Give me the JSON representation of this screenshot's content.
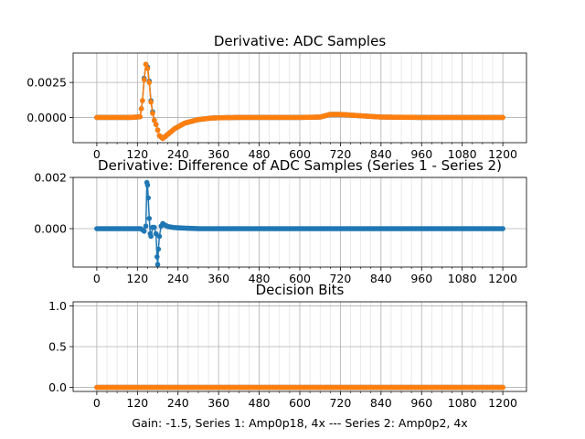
{
  "figure": {
    "xlabel": "Gain: -1.5, Series 1: Amp0p18, 4x --- Series 2: Amp0p2, 4x"
  },
  "colors": {
    "series1": "#1f77b4",
    "series2": "#ff7f0e",
    "grid": "#b0b0b0"
  },
  "chart_data": [
    {
      "type": "line",
      "title": "Derivative: ADC Samples",
      "xlim": [
        -70,
        1270
      ],
      "ylim": [
        -0.0018,
        0.0046
      ],
      "xticks": [
        0,
        120,
        240,
        360,
        480,
        600,
        720,
        840,
        960,
        1080,
        1200
      ],
      "xtick_labels": [
        "0",
        "120",
        "240",
        "360",
        "480",
        "600",
        "720",
        "840",
        "960",
        "1080",
        "1200"
      ],
      "yticks": [
        0.0,
        0.0025
      ],
      "ytick_labels": [
        "0.0000",
        "0.0025"
      ],
      "grid": true,
      "marker": "circle",
      "series": [
        {
          "color_key": "series1",
          "x": [
            0,
            100,
            128,
            135,
            140,
            145,
            150,
            155,
            160,
            165,
            170,
            175,
            180,
            185,
            195,
            210,
            230,
            260,
            300,
            340,
            380,
            420,
            600,
            660,
            690,
            720,
            780,
            840,
            960,
            1080,
            1200
          ],
          "y": [
            0,
            0,
            5e-05,
            0.0012,
            0.0028,
            0.0038,
            0.0036,
            0.0026,
            0.0012,
            0.0004,
            -0.0002,
            -0.0005,
            -0.0009,
            -0.0013,
            -0.0015,
            -0.0012,
            -0.0008,
            -0.0004,
            -0.00015,
            -4e-05,
            -1e-05,
            0,
            0,
            3e-05,
            0.00022,
            0.00022,
            0.00012,
            3e-05,
            0,
            0,
            0
          ]
        },
        {
          "color_key": "series2",
          "x": [
            0,
            100,
            128,
            135,
            140,
            145,
            150,
            155,
            160,
            165,
            170,
            175,
            180,
            185,
            195,
            210,
            230,
            260,
            300,
            340,
            380,
            420,
            600,
            660,
            690,
            720,
            780,
            840,
            960,
            1080,
            1200
          ],
          "y": [
            0,
            0,
            5e-05,
            0.0012,
            0.0027,
            0.0038,
            0.0035,
            0.0025,
            0.0011,
            0.0003,
            -0.0002,
            -0.0005,
            -0.0009,
            -0.0013,
            -0.0015,
            -0.0012,
            -0.0008,
            -0.0004,
            -0.00015,
            -4e-05,
            -1e-05,
            0,
            0,
            3e-05,
            0.00022,
            0.00022,
            0.00012,
            3e-05,
            0,
            0,
            0
          ]
        }
      ]
    },
    {
      "type": "line",
      "title": "Derivative: Difference of ADC Samples (Series 1 - Series 2)",
      "xlim": [
        -70,
        1270
      ],
      "ylim": [
        -0.0015,
        0.002
      ],
      "xticks": [
        0,
        120,
        240,
        360,
        480,
        600,
        720,
        840,
        960,
        1080,
        1200
      ],
      "xtick_labels": [
        "0",
        "120",
        "240",
        "360",
        "480",
        "600",
        "720",
        "840",
        "960",
        "1080",
        "1200"
      ],
      "yticks": [
        0.0,
        0.002
      ],
      "ytick_labels": [
        "0.000",
        "0.002"
      ],
      "grid": true,
      "marker": "circle",
      "series": [
        {
          "color_key": "series1",
          "x": [
            0,
            100,
            130,
            135,
            140,
            145,
            148,
            150,
            152,
            155,
            158,
            160,
            165,
            170,
            175,
            178,
            180,
            182,
            185,
            190,
            195,
            200,
            210,
            230,
            260,
            300,
            400,
            600,
            800,
            1000,
            1200
          ],
          "y": [
            0,
            0,
            0,
            -5e-05,
            -0.0001,
            0.0001,
            0.0018,
            0.0017,
            0.0012,
            0.0004,
            -0.0002,
            -0.0003,
            5e-05,
            5e-05,
            -0.0002,
            -0.0011,
            -0.0014,
            -0.0008,
            -0.0003,
            0.0001,
            0.0002,
            0.00015,
            8e-05,
            4e-05,
            2e-05,
            0,
            0,
            0,
            0,
            0,
            0
          ]
        }
      ]
    },
    {
      "type": "line",
      "title": "Decision Bits",
      "xlim": [
        -70,
        1270
      ],
      "ylim": [
        -0.05,
        1.05
      ],
      "xticks": [
        0,
        120,
        240,
        360,
        480,
        600,
        720,
        840,
        960,
        1080,
        1200
      ],
      "xtick_labels": [
        "0",
        "120",
        "240",
        "360",
        "480",
        "600",
        "720",
        "840",
        "960",
        "1080",
        "1200"
      ],
      "yticks": [
        0.0,
        0.5,
        1.0
      ],
      "ytick_labels": [
        "0.0",
        "0.5",
        "1.0"
      ],
      "grid": true,
      "marker": "circle",
      "series": [
        {
          "color_key": "series1",
          "x": [
            0,
            1200
          ],
          "y": [
            0,
            0
          ]
        },
        {
          "color_key": "series2",
          "x": [
            0,
            1200
          ],
          "y": [
            0,
            0
          ]
        }
      ]
    }
  ]
}
